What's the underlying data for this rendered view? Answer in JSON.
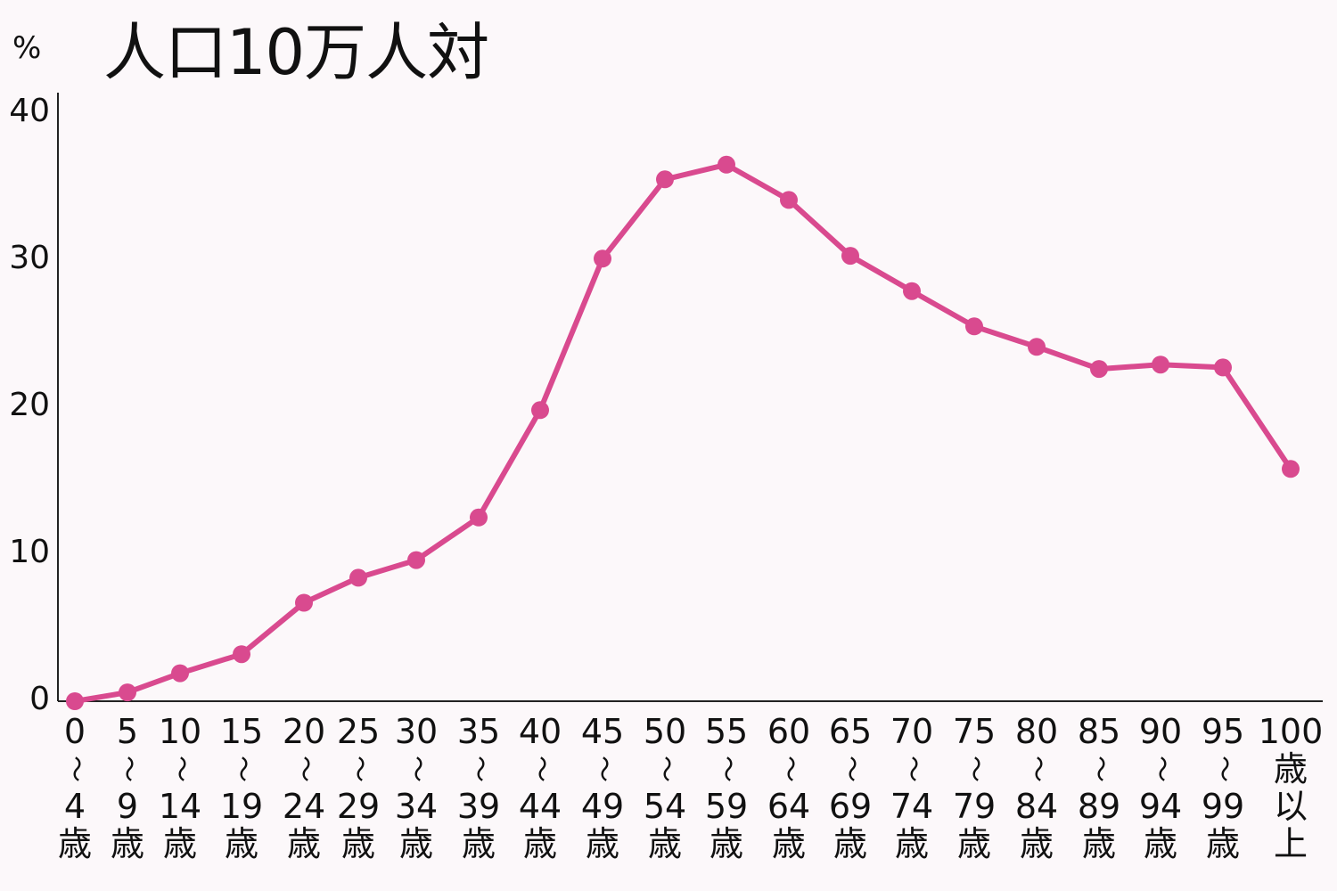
{
  "header": {
    "unit": "%",
    "title": "人口10万人対"
  },
  "colors": {
    "line": "#d94a8f",
    "axis": "#222222",
    "background": "#fcf8fa"
  },
  "chart_data": {
    "type": "line",
    "title": "人口10万人対",
    "xlabel": "",
    "ylabel": "%",
    "ylim": [
      0,
      40
    ],
    "yticks": [
      0,
      10,
      20,
      30,
      40
    ],
    "grid": false,
    "legend": null,
    "categories": [
      "0〜4歳",
      "5〜9歳",
      "10〜14歳",
      "15〜19歳",
      "20〜24歳",
      "25〜29歳",
      "30〜34歳",
      "35〜39歳",
      "40〜44歳",
      "45〜49歳",
      "50〜54歳",
      "55〜59歳",
      "60〜64歳",
      "65〜69歳",
      "70〜74歳",
      "75〜79歳",
      "80〜84歳",
      "85〜89歳",
      "90〜94歳",
      "95〜99歳",
      "100歳以上"
    ],
    "series": [
      {
        "name": "人口10万人対",
        "values": [
          0.0,
          0.6,
          1.9,
          3.2,
          6.7,
          8.4,
          9.6,
          12.5,
          19.8,
          30.1,
          35.5,
          36.5,
          34.1,
          30.3,
          27.9,
          25.5,
          24.1,
          22.6,
          22.9,
          22.7,
          15.8
        ]
      }
    ]
  },
  "x_axis": {
    "labels": [
      {
        "top": "0",
        "wave": "〜",
        "bottom": "4",
        "unit": "歳"
      },
      {
        "top": "5",
        "wave": "〜",
        "bottom": "9",
        "unit": "歳"
      },
      {
        "top": "10",
        "wave": "〜",
        "bottom": "14",
        "unit": "歳"
      },
      {
        "top": "15",
        "wave": "〜",
        "bottom": "19",
        "unit": "歳"
      },
      {
        "top": "20",
        "wave": "〜",
        "bottom": "24",
        "unit": "歳"
      },
      {
        "top": "25",
        "wave": "〜",
        "bottom": "29",
        "unit": "歳"
      },
      {
        "top": "30",
        "wave": "〜",
        "bottom": "34",
        "unit": "歳"
      },
      {
        "top": "35",
        "wave": "〜",
        "bottom": "39",
        "unit": "歳"
      },
      {
        "top": "40",
        "wave": "〜",
        "bottom": "44",
        "unit": "歳"
      },
      {
        "top": "45",
        "wave": "〜",
        "bottom": "49",
        "unit": "歳"
      },
      {
        "top": "50",
        "wave": "〜",
        "bottom": "54",
        "unit": "歳"
      },
      {
        "top": "55",
        "wave": "〜",
        "bottom": "59",
        "unit": "歳"
      },
      {
        "top": "60",
        "wave": "〜",
        "bottom": "64",
        "unit": "歳"
      },
      {
        "top": "65",
        "wave": "〜",
        "bottom": "69",
        "unit": "歳"
      },
      {
        "top": "70",
        "wave": "〜",
        "bottom": "74",
        "unit": "歳"
      },
      {
        "top": "75",
        "wave": "〜",
        "bottom": "79",
        "unit": "歳"
      },
      {
        "top": "80",
        "wave": "〜",
        "bottom": "84",
        "unit": "歳"
      },
      {
        "top": "85",
        "wave": "〜",
        "bottom": "89",
        "unit": "歳"
      },
      {
        "top": "90",
        "wave": "〜",
        "bottom": "94",
        "unit": "歳"
      },
      {
        "top": "95",
        "wave": "〜",
        "bottom": "99",
        "unit": "歳"
      },
      {
        "top": "100",
        "wave": "",
        "bottom": "歳",
        "unit": "以",
        "extra": "上"
      }
    ]
  }
}
